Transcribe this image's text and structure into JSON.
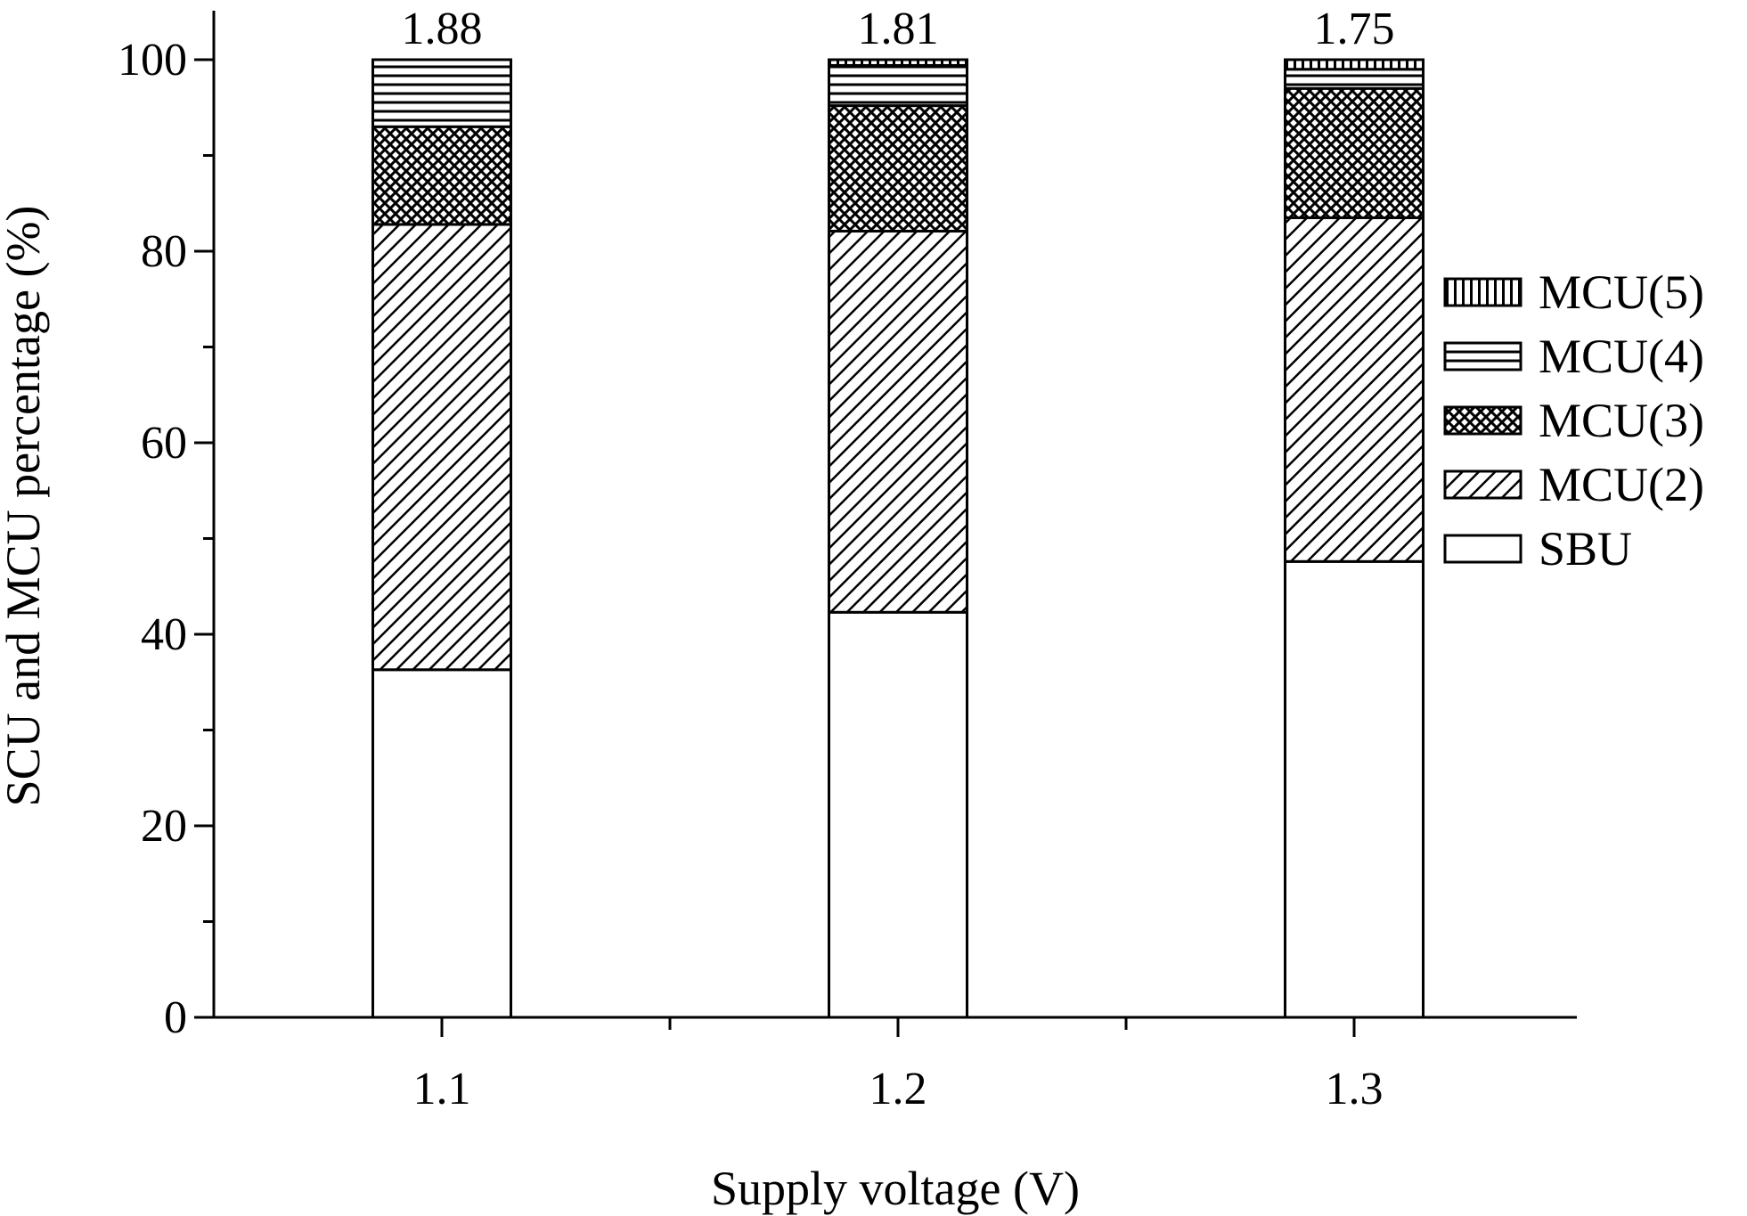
{
  "chart_data": {
    "type": "bar",
    "stacked": true,
    "xlabel": "Supply voltage (V)",
    "ylabel": "SCU and MCU percentage (%)",
    "categories": [
      "1.1",
      "1.2",
      "1.3"
    ],
    "ylim": [
      0,
      100
    ],
    "yticks": [
      "0",
      "20",
      "40",
      "60",
      "80",
      "100"
    ],
    "bar_top_labels": [
      "1.88",
      "1.81",
      "1.75"
    ],
    "series": [
      {
        "name": "SBU",
        "values": [
          36.3,
          42.3,
          47.6
        ],
        "pattern": "none"
      },
      {
        "name": "MCU(2)",
        "values": [
          46.5,
          39.8,
          35.9
        ],
        "pattern": "diagonal"
      },
      {
        "name": "MCU(3)",
        "values": [
          10.2,
          13.1,
          13.5
        ],
        "pattern": "crosshatch"
      },
      {
        "name": "MCU(4)",
        "values": [
          7.0,
          4.2,
          2.0
        ],
        "pattern": "horizontal"
      },
      {
        "name": "MCU(5)",
        "values": [
          0.0,
          0.6,
          1.0
        ],
        "pattern": "vertical"
      }
    ],
    "legend_order": [
      "MCU(5)",
      "MCU(4)",
      "MCU(3)",
      "MCU(2)",
      "SBU"
    ],
    "legend_position": "right",
    "grid": false
  }
}
